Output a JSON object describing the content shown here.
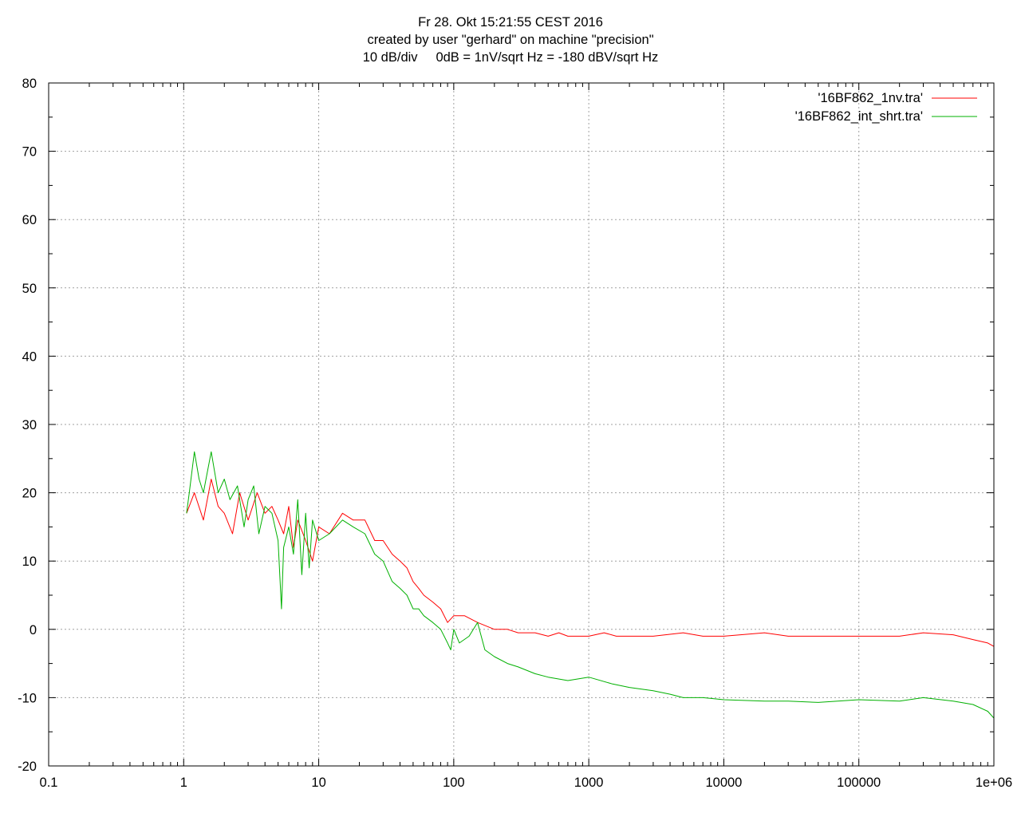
{
  "chart_data": {
    "type": "line",
    "title": [
      "Fr 28. Okt 15:21:55 CEST 2016",
      "created by user \"gerhard\" on machine \"precision\"",
      "10 dB/div     0dB = 1nV/sqrt Hz = -180 dBV/sqrt Hz"
    ],
    "xlabel": "",
    "ylabel": "",
    "x_scale": "log",
    "xlim": [
      0.1,
      1000000
    ],
    "ylim": [
      -20,
      80
    ],
    "x_ticks": [
      {
        "value": 0.1,
        "label": "0.1"
      },
      {
        "value": 1,
        "label": "1"
      },
      {
        "value": 10,
        "label": "10"
      },
      {
        "value": 100,
        "label": "100"
      },
      {
        "value": 1000,
        "label": "1000"
      },
      {
        "value": 10000,
        "label": "10000"
      },
      {
        "value": 100000,
        "label": "100000"
      },
      {
        "value": 1000000,
        "label": "1e+06"
      }
    ],
    "y_ticks": [
      {
        "value": 80,
        "label": "80"
      },
      {
        "value": 70,
        "label": "70"
      },
      {
        "value": 60,
        "label": "60"
      },
      {
        "value": 50,
        "label": "50"
      },
      {
        "value": 40,
        "label": "40"
      },
      {
        "value": 30,
        "label": "30"
      },
      {
        "value": 20,
        "label": "20"
      },
      {
        "value": 10,
        "label": "10"
      },
      {
        "value": 0,
        "label": "0"
      },
      {
        "value": -10,
        "label": "-10"
      },
      {
        "value": -20,
        "label": "-20"
      }
    ],
    "grid": true,
    "legend": "top-right",
    "series": [
      {
        "name": "'16BF862_1nv.tra'",
        "color": "#ff0000",
        "x": [
          1.05,
          1.2,
          1.4,
          1.6,
          1.8,
          2.0,
          2.3,
          2.6,
          3.0,
          3.5,
          4.0,
          4.5,
          5.0,
          5.5,
          6.0,
          6.5,
          7.0,
          8.0,
          9.0,
          10,
          12,
          15,
          18,
          22,
          26,
          30,
          35,
          40,
          45,
          50,
          55,
          60,
          70,
          80,
          90,
          100,
          120,
          150,
          200,
          250,
          300,
          400,
          500,
          600,
          700,
          800,
          1000,
          1300,
          1600,
          2000,
          3000,
          5000,
          7000,
          10000,
          20000,
          30000,
          50000,
          100000,
          200000,
          300000,
          500000,
          700000,
          900000,
          1000000
        ],
        "y": [
          17,
          20,
          16,
          22,
          18,
          17,
          14,
          20,
          16,
          20,
          17,
          18,
          16,
          14,
          18,
          12,
          16,
          13,
          10,
          15,
          14,
          17,
          16,
          16,
          13,
          13,
          11,
          10,
          9,
          7,
          6,
          5,
          4,
          3,
          1,
          2,
          2,
          1,
          0,
          0,
          -0.5,
          -0.5,
          -1,
          -0.5,
          -1,
          -1,
          -1,
          -0.5,
          -1,
          -1,
          -1,
          -0.5,
          -1,
          -1,
          -0.5,
          -1,
          -1,
          -1,
          -1,
          -0.5,
          -0.8,
          -1.5,
          -2,
          -2.5
        ]
      },
      {
        "name": "'16BF862_int_shrt.tra'",
        "color": "#00b000",
        "x": [
          1.05,
          1.1,
          1.2,
          1.3,
          1.4,
          1.6,
          1.8,
          2.0,
          2.2,
          2.5,
          2.8,
          3.0,
          3.3,
          3.6,
          4.0,
          4.5,
          5.0,
          5.3,
          5.5,
          6.0,
          6.5,
          7.0,
          7.5,
          8.0,
          8.5,
          9.0,
          10,
          12,
          15,
          18,
          22,
          26,
          30,
          35,
          40,
          45,
          50,
          55,
          60,
          70,
          80,
          90,
          95,
          100,
          110,
          130,
          150,
          170,
          200,
          250,
          300,
          400,
          500,
          700,
          1000,
          1500,
          2000,
          3000,
          4000,
          5000,
          7000,
          10000,
          20000,
          30000,
          50000,
          100000,
          200000,
          300000,
          500000,
          700000,
          900000,
          1000000
        ],
        "y": [
          17,
          20,
          26,
          22,
          20,
          26,
          20,
          22,
          19,
          21,
          15,
          19,
          21,
          14,
          18,
          17,
          13,
          3,
          12,
          15,
          11,
          19,
          8,
          17,
          9,
          16,
          13,
          14,
          16,
          15,
          14,
          11,
          10,
          7,
          6,
          5,
          3,
          3,
          2,
          1,
          0,
          -2,
          -3,
          0,
          -2,
          -1,
          1,
          -3,
          -4,
          -5,
          -5.5,
          -6.5,
          -7,
          -7.5,
          -7,
          -8,
          -8.5,
          -9,
          -9.5,
          -10,
          -10,
          -10.3,
          -10.5,
          -10.5,
          -10.7,
          -10.3,
          -10.5,
          -10,
          -10.5,
          -11,
          -12,
          -13
        ]
      }
    ]
  }
}
